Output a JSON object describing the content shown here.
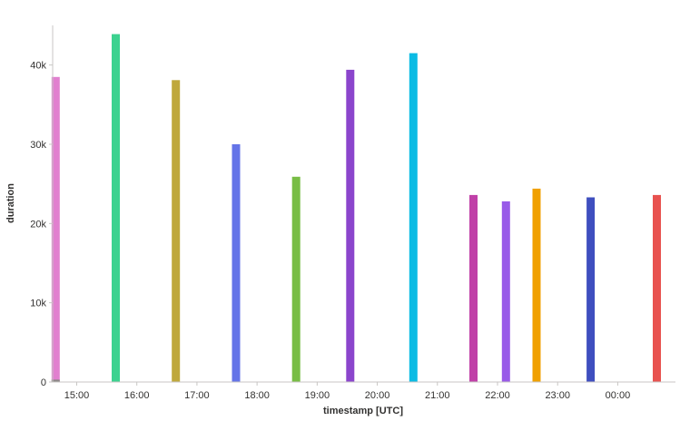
{
  "chart_data": {
    "type": "bar",
    "xlabel": "timestamp [UTC]",
    "ylabel": "duration",
    "ylim": [
      0,
      45000
    ],
    "yticks": [
      0,
      10000,
      20000,
      30000,
      40000
    ],
    "ytick_labels": [
      "0",
      "10k",
      "20k",
      "30k",
      "40k"
    ],
    "xrange_hours": [
      14.6,
      24.96
    ],
    "xticks": [
      15,
      16,
      17,
      18,
      19,
      20,
      21,
      22,
      23,
      24
    ],
    "xtick_labels": [
      "15:00",
      "16:00",
      "17:00",
      "18:00",
      "19:00",
      "20:00",
      "21:00",
      "22:00",
      "23:00",
      "00:00"
    ],
    "grid": false,
    "legend": "none",
    "bars": [
      {
        "time": "14:39",
        "hour": 14.65,
        "value": 38500,
        "color": "#e17fcf"
      },
      {
        "time": "14:39",
        "hour": 14.65,
        "value": 300,
        "color": "#8a8886"
      },
      {
        "time": "15:39",
        "hour": 15.65,
        "value": 43900,
        "color": "#3cd28f"
      },
      {
        "time": "16:39",
        "hour": 16.65,
        "value": 38100,
        "color": "#bfa83c"
      },
      {
        "time": "17:39",
        "hour": 17.65,
        "value": 30000,
        "color": "#6474e8"
      },
      {
        "time": "18:39",
        "hour": 18.65,
        "value": 25900,
        "color": "#78bd45"
      },
      {
        "time": "19:33",
        "hour": 19.55,
        "value": 39400,
        "color": "#8b45cc"
      },
      {
        "time": "20:36",
        "hour": 20.6,
        "value": 41500,
        "color": "#0bbbe4"
      },
      {
        "time": "21:36",
        "hour": 21.6,
        "value": 23600,
        "color": "#c040a8"
      },
      {
        "time": "22:08",
        "hour": 22.14,
        "value": 22800,
        "color": "#985ae8"
      },
      {
        "time": "22:39",
        "hour": 22.65,
        "value": 24400,
        "color": "#f0a000"
      },
      {
        "time": "23:33",
        "hour": 23.55,
        "value": 23300,
        "color": "#3f4fbf"
      },
      {
        "time": "00:39",
        "hour": 24.65,
        "value": 23600,
        "color": "#e8524f"
      }
    ]
  }
}
